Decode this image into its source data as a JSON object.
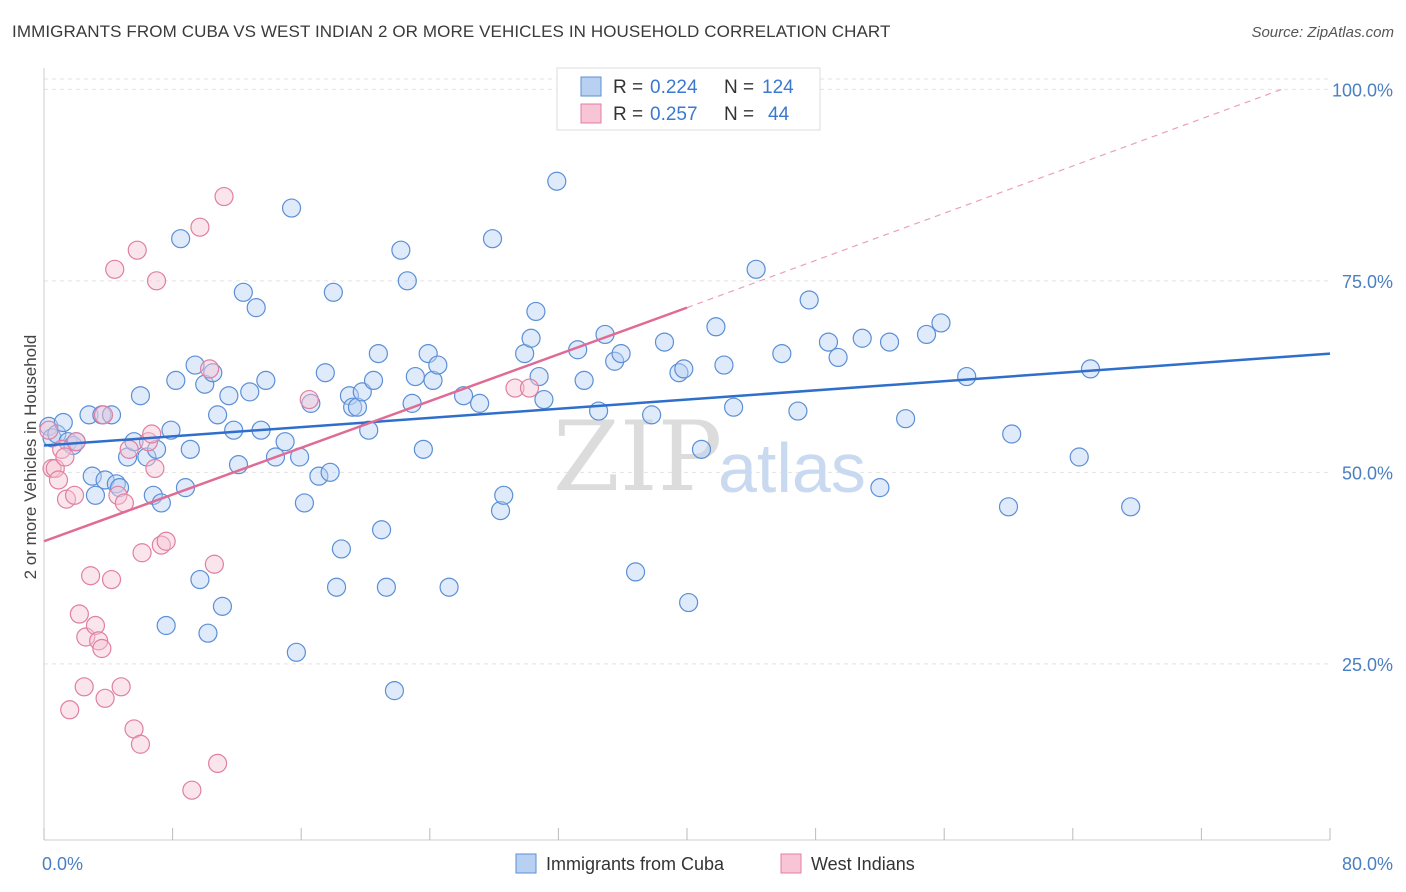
{
  "header": {
    "title": "IMMIGRANTS FROM CUBA VS WEST INDIAN 2 OR MORE VEHICLES IN HOUSEHOLD CORRELATION CHART",
    "source": "Source: ZipAtlas.com"
  },
  "watermark": {
    "zip": "ZIP",
    "atlas": "atlas"
  },
  "legend": {
    "r_label": "R =",
    "n_label": "N =",
    "rows": [
      {
        "r": "0.224",
        "n": "124"
      },
      {
        "r": "0.257",
        "n": "44"
      }
    ]
  },
  "colors": {
    "cuba_fill": "#b8d1f3",
    "cuba_stroke": "#5b8fd6",
    "cuba_line": "#2f6fcb",
    "wi_fill": "#f7c5d5",
    "wi_stroke": "#e07fa2",
    "wi_line": "#e06b94",
    "grid": "#e3e3e3",
    "tick_text": "#4a7fc1"
  },
  "chart_data": {
    "type": "scatter",
    "title": "IMMIGRANTS FROM CUBA VS WEST INDIAN 2 OR MORE VEHICLES IN HOUSEHOLD CORRELATION CHART",
    "xlabel": "",
    "ylabel": "2 or more Vehicles in Household",
    "xlim": [
      0,
      80
    ],
    "ylim": [
      2,
      102
    ],
    "x_tick_labels": [
      "0.0%",
      "80.0%"
    ],
    "y_ticks": [
      25,
      50,
      75,
      100
    ],
    "y_tick_labels": [
      "25.0%",
      "50.0%",
      "75.0%",
      "100.0%"
    ],
    "grid": true,
    "legend_position": "top-center",
    "series": [
      {
        "name": "Immigrants from Cuba",
        "r": 0.224,
        "n": 124,
        "trend": {
          "x": [
            0,
            80
          ],
          "y": [
            53.5,
            65.5
          ],
          "style": "solid"
        },
        "points": [
          [
            0.3,
            56
          ],
          [
            0.5,
            54.5
          ],
          [
            0.8,
            55
          ],
          [
            1.2,
            56.5
          ],
          [
            1.5,
            54
          ],
          [
            1.8,
            53.5
          ],
          [
            2.0,
            54
          ],
          [
            2.8,
            57.5
          ],
          [
            3.0,
            49.5
          ],
          [
            3.2,
            47
          ],
          [
            3.6,
            57.5
          ],
          [
            3.8,
            49
          ],
          [
            4.2,
            57.5
          ],
          [
            4.5,
            48.5
          ],
          [
            4.7,
            48
          ],
          [
            5.2,
            52
          ],
          [
            5.6,
            54
          ],
          [
            6.0,
            60
          ],
          [
            6.4,
            52
          ],
          [
            6.8,
            47
          ],
          [
            7.0,
            53
          ],
          [
            7.3,
            46
          ],
          [
            7.6,
            30
          ],
          [
            7.9,
            55.5
          ],
          [
            8.2,
            62
          ],
          [
            8.5,
            80.5
          ],
          [
            8.8,
            48
          ],
          [
            9.1,
            53
          ],
          [
            9.4,
            64
          ],
          [
            9.7,
            36
          ],
          [
            10.0,
            61.5
          ],
          [
            10.2,
            29
          ],
          [
            10.5,
            63
          ],
          [
            10.8,
            57.5
          ],
          [
            11.1,
            32.5
          ],
          [
            11.5,
            60
          ],
          [
            11.8,
            55.5
          ],
          [
            12.1,
            51
          ],
          [
            12.4,
            73.5
          ],
          [
            12.8,
            60.5
          ],
          [
            13.2,
            71.5
          ],
          [
            13.5,
            55.5
          ],
          [
            13.8,
            62
          ],
          [
            14.4,
            52
          ],
          [
            15.0,
            54
          ],
          [
            15.4,
            84.5
          ],
          [
            15.7,
            26.5
          ],
          [
            15.9,
            52
          ],
          [
            16.2,
            46
          ],
          [
            16.6,
            59
          ],
          [
            17.1,
            49.5
          ],
          [
            17.5,
            63
          ],
          [
            17.8,
            50
          ],
          [
            18.0,
            73.5
          ],
          [
            18.5,
            40
          ],
          [
            18.2,
            35
          ],
          [
            19.0,
            60
          ],
          [
            19.2,
            58.5
          ],
          [
            19.5,
            58.5
          ],
          [
            19.8,
            60.5
          ],
          [
            20.2,
            55.5
          ],
          [
            20.5,
            62
          ],
          [
            20.8,
            65.5
          ],
          [
            21.0,
            42.5
          ],
          [
            21.3,
            35
          ],
          [
            21.8,
            21.5
          ],
          [
            22.2,
            79
          ],
          [
            22.6,
            75
          ],
          [
            22.9,
            59
          ],
          [
            23.1,
            62.5
          ],
          [
            23.6,
            53
          ],
          [
            23.9,
            65.5
          ],
          [
            24.2,
            62
          ],
          [
            24.5,
            64
          ],
          [
            25.2,
            35
          ],
          [
            26.1,
            60
          ],
          [
            27.1,
            59
          ],
          [
            27.9,
            80.5
          ],
          [
            28.4,
            45
          ],
          [
            28.6,
            47
          ],
          [
            29.9,
            65.5
          ],
          [
            30.3,
            67.5
          ],
          [
            30.6,
            71
          ],
          [
            30.8,
            62.5
          ],
          [
            31.1,
            59.5
          ],
          [
            31.9,
            88
          ],
          [
            33.2,
            66
          ],
          [
            33.6,
            62
          ],
          [
            34.5,
            58
          ],
          [
            34.9,
            68
          ],
          [
            35.5,
            64.5
          ],
          [
            35.9,
            65.5
          ],
          [
            36.8,
            37
          ],
          [
            37.8,
            57.5
          ],
          [
            38.6,
            67
          ],
          [
            39.5,
            63
          ],
          [
            39.8,
            63.5
          ],
          [
            40.1,
            33
          ],
          [
            40.9,
            53
          ],
          [
            41.8,
            69
          ],
          [
            42.3,
            64
          ],
          [
            42.9,
            58.5
          ],
          [
            44.3,
            76.5
          ],
          [
            45.9,
            65.5
          ],
          [
            46.9,
            58
          ],
          [
            47.6,
            72.5
          ],
          [
            48.8,
            67
          ],
          [
            49.4,
            65
          ],
          [
            50.9,
            67.5
          ],
          [
            52.0,
            48
          ],
          [
            52.6,
            67
          ],
          [
            53.6,
            57
          ],
          [
            54.9,
            68
          ],
          [
            55.8,
            69.5
          ],
          [
            57.4,
            62.5
          ],
          [
            60.0,
            45.5
          ],
          [
            60.2,
            55
          ],
          [
            64.4,
            52
          ],
          [
            65.1,
            63.5
          ],
          [
            67.6,
            45.5
          ]
        ]
      },
      {
        "name": "West Indians",
        "r": 0.257,
        "n": 44,
        "trend": {
          "x": [
            0,
            40
          ],
          "y": [
            41,
            71.5
          ],
          "style": "solid"
        },
        "trend_extension": {
          "x": [
            40,
            77
          ],
          "y": [
            71.5,
            100
          ],
          "style": "dashed"
        },
        "points": [
          [
            0.3,
            55.5
          ],
          [
            0.5,
            50.5
          ],
          [
            0.7,
            50.5
          ],
          [
            0.9,
            49
          ],
          [
            1.1,
            53
          ],
          [
            1.3,
            52
          ],
          [
            1.4,
            46.5
          ],
          [
            1.6,
            19
          ],
          [
            1.9,
            47
          ],
          [
            2.0,
            54
          ],
          [
            2.2,
            31.5
          ],
          [
            2.5,
            22
          ],
          [
            2.6,
            28.5
          ],
          [
            2.9,
            36.5
          ],
          [
            3.2,
            30
          ],
          [
            3.4,
            28
          ],
          [
            3.6,
            27
          ],
          [
            3.7,
            57.5
          ],
          [
            3.8,
            20.5
          ],
          [
            4.2,
            36
          ],
          [
            4.4,
            76.5
          ],
          [
            4.6,
            47
          ],
          [
            4.8,
            22
          ],
          [
            5.0,
            46
          ],
          [
            5.3,
            53
          ],
          [
            5.6,
            16.5
          ],
          [
            5.8,
            79
          ],
          [
            6.0,
            14.5
          ],
          [
            6.1,
            39.5
          ],
          [
            6.5,
            54
          ],
          [
            6.7,
            55
          ],
          [
            6.9,
            50.5
          ],
          [
            7.0,
            75
          ],
          [
            7.3,
            40.5
          ],
          [
            7.6,
            41
          ],
          [
            9.2,
            8.5
          ],
          [
            9.7,
            82
          ],
          [
            10.3,
            63.5
          ],
          [
            10.6,
            38
          ],
          [
            10.8,
            12
          ],
          [
            11.2,
            86
          ],
          [
            16.5,
            59.5
          ],
          [
            29.3,
            61
          ],
          [
            30.2,
            61
          ]
        ]
      }
    ]
  },
  "bottom_legend": {
    "items": [
      "Immigrants from Cuba",
      "West Indians"
    ]
  }
}
